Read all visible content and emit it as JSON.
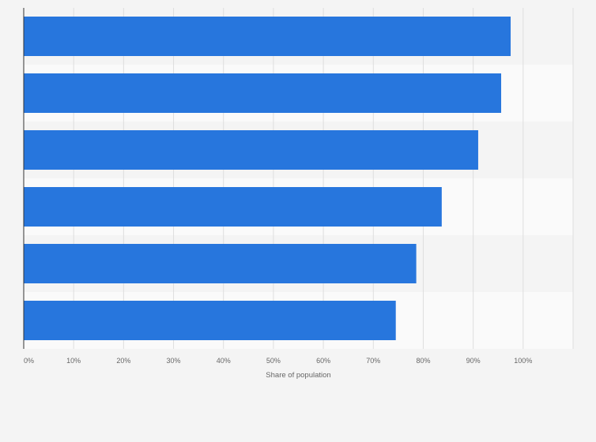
{
  "chart_data": {
    "type": "bar",
    "orientation": "horizontal",
    "categories": [
      "",
      "",
      "",
      "",
      "",
      ""
    ],
    "values": [
      97.5,
      95.6,
      91.0,
      83.7,
      78.6,
      74.5
    ],
    "xlabel": "Share of population",
    "ylabel": "",
    "xlim": [
      0,
      110
    ],
    "x_ticks": [
      0,
      10,
      20,
      30,
      40,
      50,
      60,
      70,
      80,
      90,
      100
    ],
    "x_tick_labels": [
      "0%",
      "10%",
      "20%",
      "30%",
      "40%",
      "50%",
      "60%",
      "70%",
      "80%",
      "90%",
      "100%"
    ],
    "grid": true,
    "bar_color": "#2776dd"
  }
}
